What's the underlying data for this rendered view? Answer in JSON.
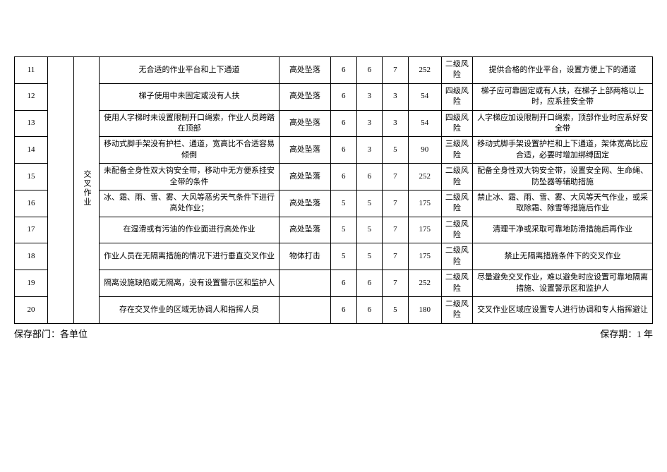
{
  "table": {
    "category_label": "交叉作业",
    "col_widths": {
      "idx": 36,
      "cat": 28,
      "desc": 195,
      "haz": 56,
      "n": 28,
      "score": 36,
      "risk": 34,
      "meas": 195
    },
    "rows": [
      {
        "idx": "11",
        "desc": "无合适的作业平台和上下通道",
        "hazard": "高处坠落",
        "l": "6",
        "e": "6",
        "c": "7",
        "d": "252",
        "risk": "二级风险",
        "measure": "提供合格的作业平台，设置方便上下的通道"
      },
      {
        "idx": "12",
        "desc": "梯子使用中未固定或没有人扶",
        "hazard": "高处坠落",
        "l": "6",
        "e": "3",
        "c": "3",
        "d": "54",
        "risk": "四级风险",
        "measure": "梯子应可靠固定或有人扶，在梯子上部两格以上时，应系挂安全带"
      },
      {
        "idx": "13",
        "desc": "使用人字梯时未设置限制开口绳索，作业人员跨踏在顶部",
        "hazard": "高处坠落",
        "l": "6",
        "e": "3",
        "c": "3",
        "d": "54",
        "risk": "四级风险",
        "measure": "人字梯应加设限制开口绳索，顶部作业时应系好安全带"
      },
      {
        "idx": "14",
        "desc": "移动式脚手架没有护栏、通道，宽高比不合适容易倾倒",
        "hazard": "高处坠落",
        "l": "6",
        "e": "3",
        "c": "5",
        "d": "90",
        "risk": "三级风险",
        "measure": "移动式脚手架设置护栏和上下通道，架体宽高比应合适，必要时增加绑缚固定"
      },
      {
        "idx": "15",
        "desc": "未配备全身性双大钩安全带，移动中无方便系挂安全带的条件",
        "hazard": "高处坠落",
        "l": "6",
        "e": "6",
        "c": "7",
        "d": "252",
        "risk": "二级风险",
        "measure": "配备全身性双大钩安全带，设置安全网、生命绳、防坠器等辅助措施"
      },
      {
        "idx": "16",
        "desc": "冰、霜、雨、雪、雾、大风等恶劣天气条件下进行高处作业；",
        "hazard": "高处坠落",
        "l": "5",
        "e": "5",
        "c": "7",
        "d": "175",
        "risk": "二级风险",
        "measure": "禁止冰、霜、雨、雪、雾、大风等天气作业，或采取除霜、除雪等措施后作业"
      },
      {
        "idx": "17",
        "desc": "在湿滑或有污油的作业面进行高处作业",
        "hazard": "高处坠落",
        "l": "5",
        "e": "5",
        "c": "7",
        "d": "175",
        "risk": "二级风险",
        "measure": "清理干净或采取可靠地防滑措施后再作业"
      },
      {
        "idx": "18",
        "desc": "作业人员在无隔离措施的情况下进行垂直交叉作业",
        "hazard": "物体打击",
        "l": "5",
        "e": "5",
        "c": "7",
        "d": "175",
        "risk": "二级风险",
        "measure": "禁止无隔离措施条件下的交叉作业"
      },
      {
        "idx": "19",
        "desc": "隔离设施缺陷或无隔离，没有设置警示区和监护人",
        "hazard": "",
        "l": "6",
        "e": "6",
        "c": "7",
        "d": "252",
        "risk": "二级风险",
        "measure": "尽量避免交叉作业，难以避免时应设置可靠地隔离措施、设置警示区和监护人"
      },
      {
        "idx": "20",
        "desc": "存在交叉作业的区域无协调人和指挥人员",
        "hazard": "",
        "l": "6",
        "e": "6",
        "c": "5",
        "d": "180",
        "risk": "二级风险",
        "measure": "交叉作业区域应设置专人进行协调和专人指挥避让"
      }
    ]
  },
  "footer": {
    "left_label": "保存部门：",
    "left_value": "各单位",
    "right_label": "保存期：",
    "right_value": "1 年"
  }
}
